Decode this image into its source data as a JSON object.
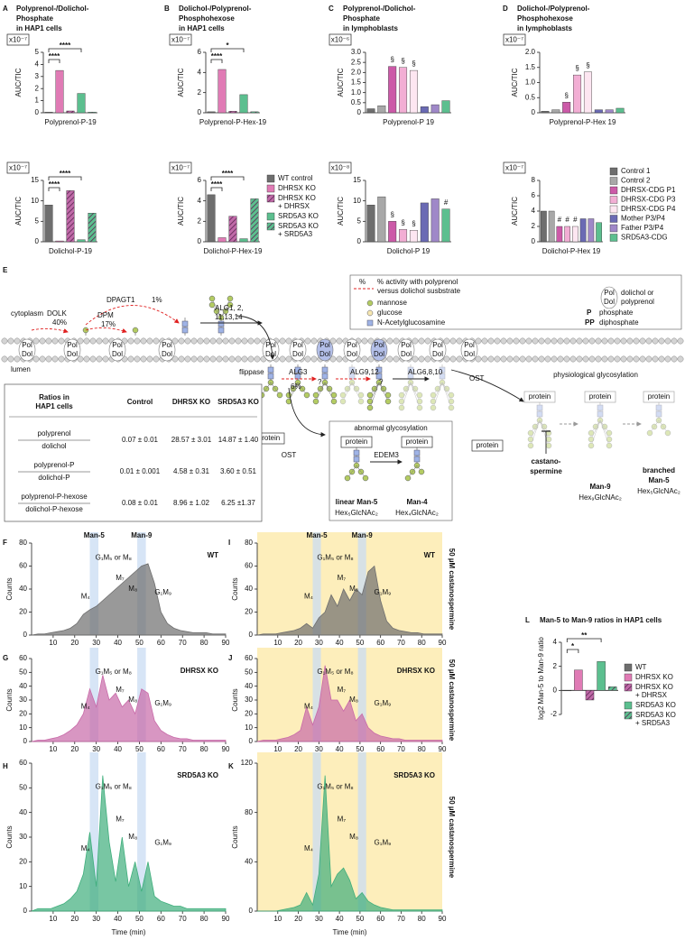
{
  "chart_data": [
    {
      "type": "bar",
      "panel": "A",
      "title": [
        "Polyprenol-/Dolichol-",
        "Phosphate",
        "in HAP1 cells"
      ],
      "multiplier": "x10⁻⁷",
      "ylabel": "AUC/TIC",
      "xlabel": "Polyprenol-P-19",
      "values": [
        0.05,
        3.5,
        0.15,
        1.6,
        0.05
      ],
      "colors": [
        "#6e6e6e",
        "#e07bb5",
        "#c06aa8",
        "#5cbf8f",
        "#5cbf8f"
      ],
      "hatched": [
        false,
        false,
        true,
        false,
        true
      ],
      "ylim": [
        0,
        5
      ],
      "yticks": [
        0,
        1,
        2,
        3,
        4,
        5
      ],
      "annotations": [
        "****",
        "****"
      ]
    },
    {
      "type": "bar",
      "panel": "B",
      "title": [
        "Dolichol-/Polyprenol-",
        "Phosphohexose",
        "in HAP1 cells"
      ],
      "multiplier": "x10⁻⁷",
      "ylabel": "AUC/TIC",
      "xlabel": "Polyprenol-P-Hex-19",
      "values": [
        0.1,
        4.3,
        0.15,
        1.8,
        0.1
      ],
      "colors": [
        "#6e6e6e",
        "#e07bb5",
        "#c06aa8",
        "#5cbf8f",
        "#5cbf8f"
      ],
      "hatched": [
        false,
        false,
        true,
        false,
        true
      ],
      "ylim": [
        0,
        6
      ],
      "yticks": [
        0,
        2,
        4,
        6
      ],
      "annotations": [
        "****",
        "*"
      ]
    },
    {
      "type": "bar",
      "panel": "C",
      "title": [
        "Polyprenol-/Dolichol-",
        "Phosphate",
        "in lymphoblasts"
      ],
      "multiplier": "x10⁻⁶",
      "ylabel": "AUC/TIC",
      "xlabel": "Polyprenol-P 19",
      "values": [
        0.2,
        0.35,
        2.3,
        2.25,
        2.1,
        0.3,
        0.4,
        0.6
      ],
      "colors": [
        "#6e6e6e",
        "#a8a8a8",
        "#cc5aa8",
        "#f2aed4",
        "#fde6f1",
        "#6a6ab4",
        "#9f88c8",
        "#5cbf8f"
      ],
      "ylim": [
        0,
        3
      ],
      "yticks": [
        0,
        0.5,
        {
          "value": 1,
          "label": "1.0"
        },
        1.5,
        {
          "value": 2,
          "label": "2.0"
        },
        2.5,
        {
          "value": 3,
          "label": "3.0"
        }
      ],
      "bar_labels": [
        null,
        null,
        "§",
        "§",
        "§",
        null,
        null,
        null
      ]
    },
    {
      "type": "bar",
      "panel": "D",
      "title": [
        "Dolichol-/Polyprenol-",
        "Phosphohexose",
        "in lymphoblasts"
      ],
      "multiplier": "x10⁻⁷",
      "ylabel": "AUC/TIC",
      "xlabel": "Polyprenol-P-Hex 19",
      "values": [
        0.05,
        0.1,
        0.35,
        1.25,
        1.35,
        0.1,
        0.1,
        0.15
      ],
      "colors": [
        "#6e6e6e",
        "#a8a8a8",
        "#cc5aa8",
        "#f2aed4",
        "#fde6f1",
        "#6a6ab4",
        "#9f88c8",
        "#5cbf8f"
      ],
      "ylim": [
        0,
        2
      ],
      "yticks": [
        0,
        0.5,
        {
          "value": 1,
          "label": "1.0"
        },
        1.5,
        {
          "value": 2,
          "label": "2.0"
        }
      ],
      "bar_labels": [
        null,
        null,
        "§",
        "§",
        "§",
        null,
        null,
        null
      ]
    },
    {
      "type": "bar",
      "multiplier": "x10⁻⁷",
      "ylabel": "AUC/TIC",
      "xlabel": "Dolichol-P-19",
      "values": [
        9,
        0.2,
        12.5,
        0.5,
        7
      ],
      "colors": [
        "#6e6e6e",
        "#e07bb5",
        "#c06aa8",
        "#5cbf8f",
        "#5cbf8f"
      ],
      "hatched": [
        false,
        false,
        true,
        false,
        true
      ],
      "ylim": [
        0,
        15
      ],
      "yticks": [
        0,
        5,
        10,
        15
      ],
      "annotations": [
        "****",
        "****"
      ]
    },
    {
      "type": "bar",
      "multiplier": "x10⁻⁷",
      "ylabel": "AUC/TIC",
      "xlabel": "Dolichol-P-Hex-19",
      "values": [
        4.6,
        0.4,
        2.5,
        0.3,
        4.2
      ],
      "colors": [
        "#6e6e6e",
        "#e07bb5",
        "#c06aa8",
        "#5cbf8f",
        "#5cbf8f"
      ],
      "hatched": [
        false,
        false,
        true,
        false,
        true
      ],
      "ylim": [
        0,
        6
      ],
      "yticks": [
        0,
        2,
        4,
        6
      ],
      "annotations": [
        "****",
        "****"
      ]
    },
    {
      "type": "bar",
      "multiplier": "x10⁻⁸",
      "ylabel": "AUC/TIC",
      "xlabel": "Dolichol-P 19",
      "values": [
        9,
        11,
        5,
        3,
        2.8,
        9.5,
        10.5,
        8
      ],
      "colors": [
        "#6e6e6e",
        "#a8a8a8",
        "#cc5aa8",
        "#f2aed4",
        "#fde6f1",
        "#6a6ab4",
        "#9f88c8",
        "#5cbf8f"
      ],
      "ylim": [
        0,
        15
      ],
      "yticks": [
        0,
        5,
        10,
        15
      ],
      "bar_labels": [
        null,
        null,
        "§",
        "§",
        "§",
        null,
        null,
        "#"
      ]
    },
    {
      "type": "bar",
      "multiplier": "x10⁻⁷",
      "ylabel": "AUC/TIC",
      "xlabel": "Dolichol-P-Hex 19",
      "values": [
        4,
        4,
        2,
        2,
        2,
        3,
        3,
        2.5
      ],
      "colors": [
        "#6e6e6e",
        "#a8a8a8",
        "#cc5aa8",
        "#f2aed4",
        "#fde6f1",
        "#6a6ab4",
        "#9f88c8",
        "#5cbf8f"
      ],
      "ylim": [
        0,
        8
      ],
      "yticks": [
        0,
        2,
        4,
        6,
        8
      ],
      "bar_labels": [
        null,
        null,
        "#",
        "#",
        "#",
        null,
        null,
        null
      ]
    },
    {
      "type": "bar",
      "panel": "L",
      "title": [
        "Man-5 to Man-9 ratios in HAP1 cells"
      ],
      "ylabel": "log2 Man-5 to Man-9 ratio",
      "values": [
        0,
        1.7,
        -0.8,
        2.4,
        0.3
      ],
      "colors": [
        "#6e6e6e",
        "#e07bb5",
        "#c06aa8",
        "#5cbf8f",
        "#5cbf8f"
      ],
      "hatched": [
        false,
        false,
        true,
        false,
        true
      ],
      "ylim": [
        -2,
        4
      ],
      "yticks": [
        -2,
        0,
        2,
        4
      ],
      "annotations": [
        "*",
        "**"
      ]
    },
    {
      "type": "area",
      "panel": "F",
      "label": "WT",
      "label_color": "#111111",
      "color": "#6e6e6e",
      "ylabel": "Counts",
      "band_labels": [
        "Man-5",
        "Man-9"
      ],
      "peak_labels": [
        "M₄",
        "G₁M₅ or M₈",
        "M₇",
        "M₈",
        "G₁M₉"
      ],
      "x": [
        0,
        3,
        6,
        9,
        12,
        15,
        18,
        21,
        24,
        27,
        30,
        33,
        36,
        39,
        42,
        45,
        48,
        51,
        54,
        57,
        60,
        63,
        66,
        69,
        72,
        75,
        78,
        81,
        84,
        87,
        90
      ],
      "values": [
        0,
        1,
        1,
        2,
        3,
        4,
        6,
        10,
        18,
        22,
        25,
        30,
        35,
        40,
        45,
        50,
        55,
        60,
        62,
        45,
        20,
        10,
        6,
        4,
        3,
        2,
        2,
        2,
        1,
        1,
        1
      ],
      "xlim": [
        0,
        90
      ],
      "xticks": [
        10,
        20,
        30,
        40,
        50,
        60,
        70,
        80,
        90
      ],
      "ylim": [
        0,
        80
      ],
      "yticks": [
        0,
        20,
        40,
        60,
        80
      ]
    },
    {
      "type": "area",
      "panel": "G",
      "label": "DHRSX KO",
      "label_color": "#8b1a7a",
      "color": "#c86aa8",
      "ylabel": "Counts",
      "peak_labels": [
        "M₄",
        "G₁M₅ or M₈",
        "M₇",
        "M₈",
        "G₁M₉"
      ],
      "x": [
        0,
        3,
        6,
        9,
        12,
        15,
        18,
        21,
        24,
        27,
        30,
        33,
        36,
        39,
        42,
        45,
        48,
        51,
        54,
        57,
        60,
        63,
        66,
        69,
        72,
        75,
        78,
        81,
        84,
        87,
        90
      ],
      "values": [
        0,
        1,
        1,
        2,
        3,
        5,
        8,
        12,
        20,
        38,
        25,
        48,
        30,
        35,
        25,
        30,
        20,
        38,
        35,
        15,
        8,
        5,
        3,
        2,
        2,
        1,
        1,
        1,
        1,
        1,
        1
      ],
      "xlim": [
        0,
        90
      ],
      "xticks": [
        10,
        20,
        30,
        40,
        50,
        60,
        70,
        80,
        90
      ],
      "ylim": [
        0,
        60
      ],
      "yticks": [
        0,
        10,
        20,
        30,
        40,
        50,
        60
      ]
    },
    {
      "type": "area",
      "panel": "H",
      "label": "SRD5A3 KO",
      "label_color": "#1e8a3c",
      "color": "#3fae7c",
      "ylabel": "Counts",
      "xlabel": "Time (min)",
      "peak_labels": [
        "M₄",
        "G₁M₅ or M₈",
        "M₇",
        "M₈",
        "G₁M₉"
      ],
      "x": [
        0,
        3,
        6,
        9,
        12,
        15,
        18,
        21,
        24,
        27,
        30,
        33,
        36,
        39,
        42,
        45,
        48,
        51,
        54,
        57,
        60,
        63,
        66,
        69,
        72,
        75,
        78,
        81,
        84,
        87,
        90
      ],
      "values": [
        0,
        1,
        1,
        1,
        2,
        3,
        5,
        8,
        15,
        32,
        10,
        55,
        28,
        12,
        30,
        10,
        20,
        8,
        20,
        6,
        4,
        3,
        2,
        2,
        1,
        1,
        1,
        1,
        1,
        1,
        1
      ],
      "xlim": [
        0,
        90
      ],
      "xticks": [
        10,
        20,
        30,
        40,
        50,
        60,
        70,
        80,
        90
      ],
      "ylim": [
        0,
        60
      ],
      "yticks": [
        0,
        10,
        20,
        30,
        40,
        50,
        60
      ]
    },
    {
      "type": "area",
      "panel": "I",
      "label": "WT",
      "label_color": "#111111",
      "color": "#6e6e6e",
      "ylabel": "Counts",
      "band_labels": [
        "Man-5",
        "Man-9"
      ],
      "castanospermine": "50 µM castanospermine",
      "peak_labels": [
        "M₄",
        "G₁M₅ or M₈",
        "M₇",
        "M₈",
        "G₁M₉"
      ],
      "x": [
        0,
        3,
        6,
        9,
        12,
        15,
        18,
        21,
        24,
        27,
        30,
        33,
        36,
        39,
        42,
        45,
        48,
        51,
        54,
        57,
        60,
        63,
        66,
        69,
        72,
        75,
        78,
        81,
        84,
        87,
        90
      ],
      "values": [
        0,
        1,
        1,
        1,
        2,
        3,
        4,
        6,
        10,
        6,
        15,
        20,
        35,
        25,
        40,
        30,
        40,
        35,
        55,
        60,
        30,
        12,
        6,
        4,
        3,
        2,
        2,
        1,
        1,
        1,
        1
      ],
      "xlim": [
        0,
        90
      ],
      "xticks": [
        10,
        20,
        30,
        40,
        50,
        60,
        70,
        80,
        90
      ],
      "ylim": [
        0,
        80
      ],
      "yticks": [
        0,
        20,
        40,
        60,
        80
      ]
    },
    {
      "type": "area",
      "panel": "J",
      "label": "DHRSX KO",
      "label_color": "#8b1a7a",
      "color": "#c86aa8",
      "ylabel": "Counts",
      "castanospermine": "50 µM castanospermine",
      "peak_labels": [
        "M₄",
        "G₁M₅ or M₈",
        "M₇",
        "M₈",
        "G₁M₉"
      ],
      "x": [
        0,
        3,
        6,
        9,
        12,
        15,
        18,
        21,
        24,
        27,
        30,
        33,
        36,
        39,
        42,
        45,
        48,
        51,
        54,
        57,
        60,
        63,
        66,
        69,
        72,
        75,
        78,
        81,
        84,
        87,
        90
      ],
      "values": [
        0,
        1,
        1,
        1,
        2,
        3,
        5,
        8,
        25,
        12,
        25,
        55,
        30,
        30,
        22,
        30,
        15,
        20,
        10,
        6,
        4,
        3,
        2,
        2,
        1,
        1,
        1,
        1,
        1,
        1,
        1
      ],
      "xlim": [
        0,
        90
      ],
      "xticks": [
        10,
        20,
        30,
        40,
        50,
        60,
        70,
        80,
        90
      ],
      "ylim": [
        0,
        60
      ],
      "yticks": [
        0,
        10,
        20,
        30,
        40,
        50,
        60
      ]
    },
    {
      "type": "area",
      "panel": "K",
      "label": "SRD5A3 KO",
      "label_color": "#1e8a3c",
      "color": "#3fae7c",
      "ylabel": "Counts",
      "xlabel": "Time (min)",
      "castanospermine": "50 µM castanospermine",
      "peak_labels": [
        "M₄",
        "G₁M₅ or M₈",
        "M₇",
        "M₈",
        "G₁M₉"
      ],
      "x": [
        0,
        3,
        6,
        9,
        12,
        15,
        18,
        21,
        24,
        27,
        30,
        33,
        36,
        39,
        42,
        45,
        48,
        51,
        54,
        57,
        60,
        63,
        66,
        69,
        72,
        75,
        78,
        81,
        84,
        87,
        90
      ],
      "values": [
        0,
        0,
        0,
        0,
        1,
        2,
        3,
        5,
        15,
        5,
        30,
        110,
        20,
        30,
        35,
        25,
        10,
        15,
        8,
        5,
        3,
        2,
        1,
        1,
        1,
        1,
        1,
        1,
        1,
        1,
        1
      ],
      "xlim": [
        0,
        90
      ],
      "xticks": [
        10,
        20,
        30,
        40,
        50,
        60,
        70,
        80,
        90
      ],
      "ylim": [
        0,
        120
      ],
      "yticks": [
        0,
        40,
        80,
        120
      ]
    }
  ],
  "legends": [
    {
      "names": [
        [
          "WT control"
        ],
        [
          "DHRSX KO"
        ],
        [
          "DHRSX KO",
          "+ DHRSX"
        ],
        [
          "SRD5A3 KO"
        ],
        [
          "SRD5A3 KO",
          "+ SRD5A3"
        ]
      ],
      "colors": [
        "#6e6e6e",
        "#e07bb5",
        "#c06aa8",
        "#5cbf8f",
        "#5cbf8f"
      ],
      "hatched": [
        false,
        false,
        true,
        false,
        true
      ]
    },
    {
      "names": [
        [
          "Control 1"
        ],
        [
          "Control 2"
        ],
        [
          "DHRSX-CDG P1"
        ],
        [
          "DHRSX-CDG P3"
        ],
        [
          "DHRSX-CDG P4"
        ],
        [
          "Mother P3/P4"
        ],
        [
          "Father P3/P4"
        ],
        [
          "SRD5A3-CDG"
        ]
      ],
      "colors": [
        "#6e6e6e",
        "#a8a8a8",
        "#cc5aa8",
        "#f2aed4",
        "#fde6f1",
        "#6a6ab4",
        "#9f88c8",
        "#5cbf8f"
      ],
      "text_colors": [
        "#111111",
        "#111111",
        "#9c2f8d",
        "#9c2f8d",
        "#9c2f8d",
        "#111111",
        "#111111",
        "#1e8a3c"
      ]
    },
    {
      "names": [
        [
          "WT"
        ],
        [
          "DHRSX KO"
        ],
        [
          "DHRSX KO",
          "+ DHRSX"
        ],
        [
          "SRD5A3 KO"
        ],
        [
          "SRD5A3 KO",
          "+ SRD5A3"
        ]
      ],
      "colors": [
        "#6e6e6e",
        "#e07bb5",
        "#c06aa8",
        "#5cbf8f",
        "#5cbf8f"
      ],
      "hatched": [
        false,
        false,
        true,
        false,
        true
      ]
    }
  ],
  "pathway": {
    "panel": "E",
    "lipid": [
      "Pol",
      "Dol"
    ],
    "texts": [
      "cytoplasm",
      "lumen",
      "DOLK",
      "40%",
      "DPM",
      "17%",
      "DPAGT1",
      "1%",
      "ALG1, 2,",
      "11,13,14",
      "flippase",
      "ALG3",
      "6%",
      "?",
      "ALG9,12",
      "?",
      "ALG6,8,10",
      "OST",
      "protein",
      "OST",
      "protein",
      "abnormal glycosylation",
      "protein",
      "protein",
      "EDEM3",
      "linear Man-5",
      "Hex₅GlcNAc₂",
      "Man-4",
      "Hex₄GlcNAc₂",
      "physiological glycosylation",
      "protein",
      "protein",
      "protein",
      "Man-9",
      "Hex₉GlcNAc₂",
      "branched",
      "Man-5",
      "Hex₅GlcNAc₂",
      "castano-",
      "spermine",
      "%",
      "% activity with polyprenol",
      "versus dolichol susbstrate",
      "mannose",
      "glucose",
      "N-Acetylglucosamine",
      "dolichol or",
      "polyprenol",
      "P",
      "phosphate",
      "PP",
      "diphosphate"
    ]
  },
  "table": {
    "header": [
      [
        "Ratios in",
        "HAP1 cells"
      ],
      "Control",
      "DHRSX KO",
      "SRD5A3 KO"
    ],
    "rows": [
      {
        "numerator": "polyprenol",
        "denominator": "dolichol",
        "cells": [
          "0.07 ± 0.01",
          "28.57 ± 3.01",
          "14.87 ± 1.40"
        ]
      },
      {
        "numerator": "polyprenol-P",
        "denominator": "dolichol-P",
        "cells": [
          "0.01 ± 0.001",
          "4.58 ± 0.31",
          "3.60 ± 0.51"
        ]
      },
      {
        "numerator": "polyprenol-P-hexose",
        "denominator": "dolichol-P-hexose",
        "cells": [
          "0.08 ± 0.01",
          "8.96 ± 1.02",
          "6.25 ±1.37"
        ]
      }
    ]
  }
}
